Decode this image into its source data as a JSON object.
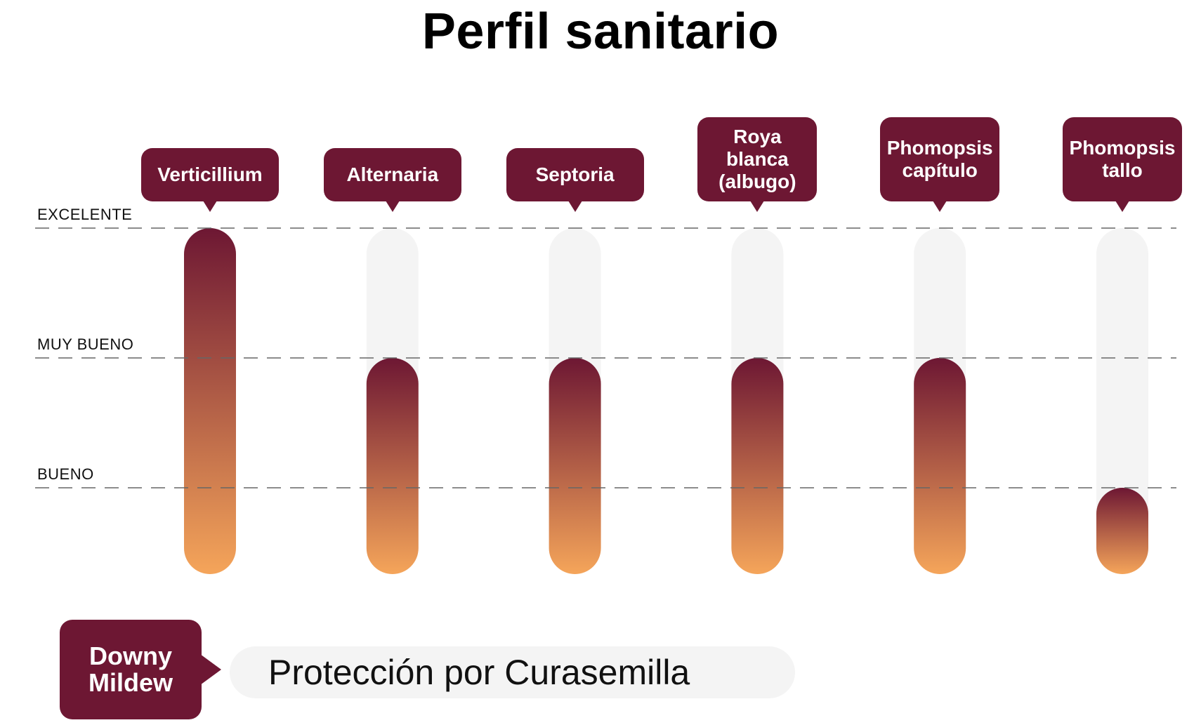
{
  "chart_data": {
    "type": "bar",
    "title": "Perfil sanitario",
    "levels": [
      "BUENO",
      "MUY BUENO",
      "EXCELENTE"
    ],
    "categories": [
      "Verticillium",
      "Alternaria",
      "Septoria",
      "Roya\nblanca\n(albugo)",
      "Phomopsis\ncapítulo",
      "Phomopsis\ntallo"
    ],
    "values": [
      3,
      2,
      2,
      2,
      2,
      1
    ],
    "ylim": [
      0,
      3
    ],
    "grid": true,
    "colors": {
      "label_box": "#6d1733",
      "bar_top": "#6d1733",
      "bar_bottom": "#f5a55a",
      "track": "#f4f4f4",
      "grid": "#666666"
    }
  },
  "footer": {
    "disease_label": "Downy\nMildew",
    "protection_text": "Protección por Curasemilla"
  }
}
